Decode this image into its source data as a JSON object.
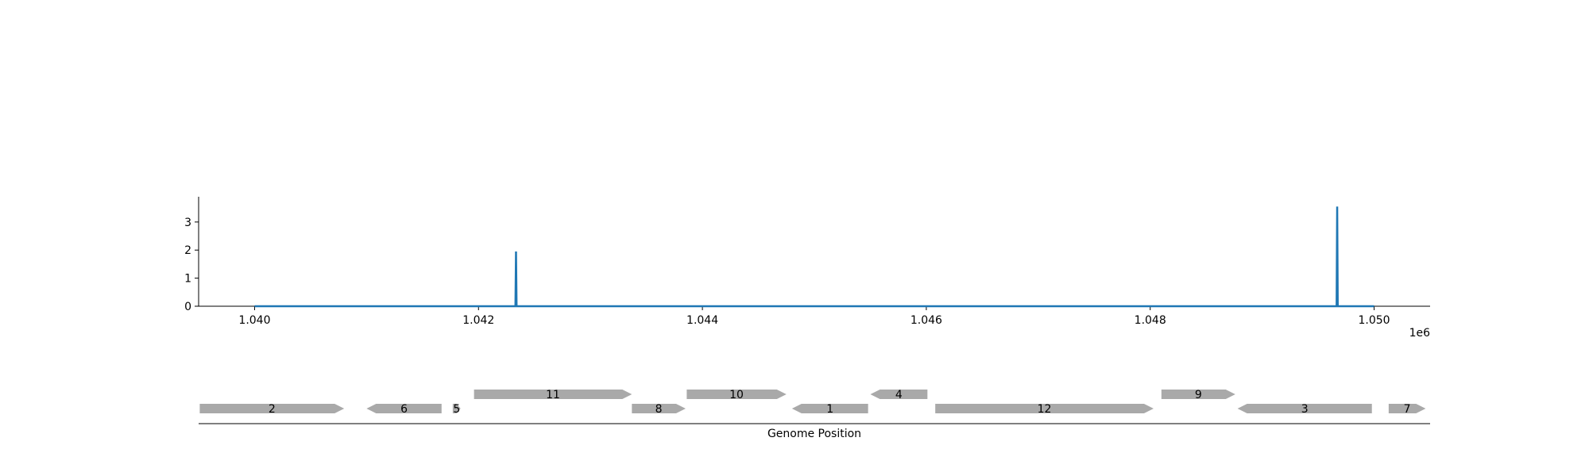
{
  "chart_data": {
    "type": "line",
    "x_offset_label": "1e6",
    "xlim": [
      1039500,
      1050500
    ],
    "ylim": [
      0,
      3.9
    ],
    "x_ticks": [
      {
        "value": 1040000,
        "label": "1.040"
      },
      {
        "value": 1042000,
        "label": "1.042"
      },
      {
        "value": 1044000,
        "label": "1.044"
      },
      {
        "value": 1046000,
        "label": "1.046"
      },
      {
        "value": 1048000,
        "label": "1.048"
      },
      {
        "value": 1050000,
        "label": "1.050"
      }
    ],
    "y_ticks": [
      {
        "value": 0,
        "label": "0"
      },
      {
        "value": 1,
        "label": "1"
      },
      {
        "value": 2,
        "label": "2"
      },
      {
        "value": 3,
        "label": "3"
      }
    ],
    "series": [
      {
        "color": "#1f77b4",
        "points": [
          [
            1040000,
            0
          ],
          [
            1042330,
            0
          ],
          [
            1042335,
            1.95
          ],
          [
            1042340,
            0
          ],
          [
            1049665,
            0
          ],
          [
            1049670,
            3.55
          ],
          [
            1049675,
            0
          ],
          [
            1050000,
            0
          ]
        ]
      }
    ],
    "grid": false
  },
  "gene_track": {
    "xlabel": "Genome Position",
    "color": "#a9a9a9",
    "genes": [
      {
        "label": "2",
        "start": 1039510,
        "end": 1040800,
        "strand": "+",
        "row": 0
      },
      {
        "label": "6",
        "start": 1041000,
        "end": 1041670,
        "strand": "-",
        "row": 0
      },
      {
        "label": "5",
        "start": 1041770,
        "end": 1041840,
        "strand": "+",
        "row": 0
      },
      {
        "label": "11",
        "start": 1041960,
        "end": 1043370,
        "strand": "+",
        "row": 1
      },
      {
        "label": "8",
        "start": 1043370,
        "end": 1043850,
        "strand": "+",
        "row": 0
      },
      {
        "label": "10",
        "start": 1043860,
        "end": 1044750,
        "strand": "+",
        "row": 1
      },
      {
        "label": "1",
        "start": 1044800,
        "end": 1045480,
        "strand": "-",
        "row": 0
      },
      {
        "label": "4",
        "start": 1045500,
        "end": 1046010,
        "strand": "-",
        "row": 1
      },
      {
        "label": "12",
        "start": 1046080,
        "end": 1048030,
        "strand": "+",
        "row": 0
      },
      {
        "label": "9",
        "start": 1048100,
        "end": 1048760,
        "strand": "+",
        "row": 1
      },
      {
        "label": "3",
        "start": 1048780,
        "end": 1049980,
        "strand": "-",
        "row": 0
      },
      {
        "label": "7",
        "start": 1050130,
        "end": 1050460,
        "strand": "+",
        "row": 0
      }
    ]
  }
}
